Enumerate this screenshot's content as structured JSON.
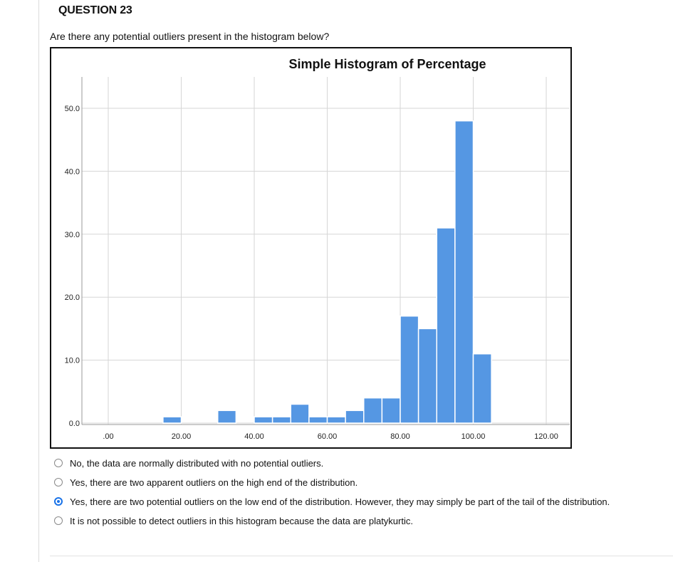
{
  "question": {
    "number_label": "QUESTION 23",
    "prompt": "Are there any potential outliers present in the histogram below?"
  },
  "chart_data": {
    "type": "bar",
    "title": "Simple Histogram of Percentage",
    "xlabel": "",
    "ylabel": "",
    "x_ticks": [
      ".00",
      "20.00",
      "40.00",
      "60.00",
      "80.00",
      "100.00",
      "120.00"
    ],
    "y_ticks": [
      "0.0",
      "10.0",
      "20.0",
      "30.0",
      "40.0",
      "50.0"
    ],
    "xlim": [
      0,
      120
    ],
    "ylim": [
      0,
      50
    ],
    "grid": true,
    "color": "#5597e3",
    "bins": [
      {
        "start": 15,
        "end": 20,
        "value": 1
      },
      {
        "start": 30,
        "end": 35,
        "value": 2
      },
      {
        "start": 40,
        "end": 45,
        "value": 1
      },
      {
        "start": 45,
        "end": 50,
        "value": 1
      },
      {
        "start": 50,
        "end": 55,
        "value": 3
      },
      {
        "start": 55,
        "end": 60,
        "value": 1
      },
      {
        "start": 60,
        "end": 65,
        "value": 1
      },
      {
        "start": 65,
        "end": 70,
        "value": 2
      },
      {
        "start": 70,
        "end": 75,
        "value": 4
      },
      {
        "start": 75,
        "end": 80,
        "value": 4
      },
      {
        "start": 80,
        "end": 85,
        "value": 17
      },
      {
        "start": 85,
        "end": 90,
        "value": 15
      },
      {
        "start": 90,
        "end": 95,
        "value": 31
      },
      {
        "start": 95,
        "end": 100,
        "value": 48
      },
      {
        "start": 100,
        "end": 105,
        "value": 11
      }
    ]
  },
  "options": [
    {
      "label": "No, the data are normally distributed with no potential outliers.",
      "selected": false
    },
    {
      "label": "Yes, there are two apparent outliers on the high end of the distribution.",
      "selected": false
    },
    {
      "label": "Yes, there are two potential outliers on the low end of the distribution. However, they may simply be part of the tail of the distribution.",
      "selected": true
    },
    {
      "label": "It is not possible to detect outliers in this histogram because the data are platykurtic.",
      "selected": false
    }
  ]
}
